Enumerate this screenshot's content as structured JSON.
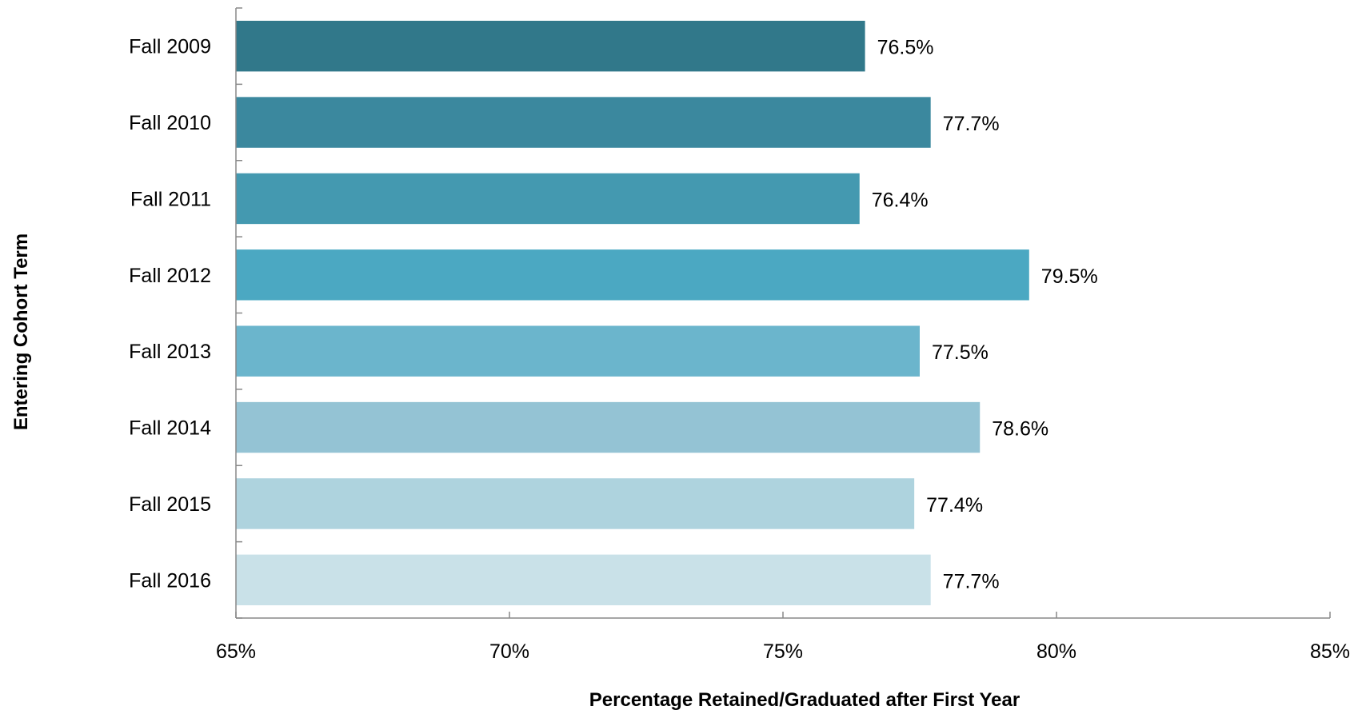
{
  "chart_data": {
    "type": "bar",
    "orientation": "horizontal",
    "categories": [
      "Fall 2009",
      "Fall 2010",
      "Fall 2011",
      "Fall 2012",
      "Fall 2013",
      "Fall 2014",
      "Fall 2015",
      "Fall 2016"
    ],
    "values": [
      76.5,
      77.7,
      76.4,
      79.5,
      77.5,
      78.6,
      77.4,
      77.7
    ],
    "data_labels": [
      "76.5%",
      "77.7%",
      "76.4%",
      "79.5%",
      "77.5%",
      "78.6%",
      "77.4%",
      "77.7%"
    ],
    "bar_colors": [
      "#31788a",
      "#3b889e",
      "#4499b0",
      "#4ba8c2",
      "#6bb5cc",
      "#94c3d4",
      "#aed3de",
      "#c9e1e8"
    ],
    "xlabel": "Percentage Retained/Graduated after First Year",
    "ylabel": "Entering Cohort  Term",
    "xlim": [
      65,
      85
    ],
    "xticks": [
      65,
      70,
      75,
      80,
      85
    ],
    "xtick_labels": [
      "65%",
      "70%",
      "75%",
      "80%",
      "85%"
    ],
    "grid": false,
    "legend": "none"
  }
}
